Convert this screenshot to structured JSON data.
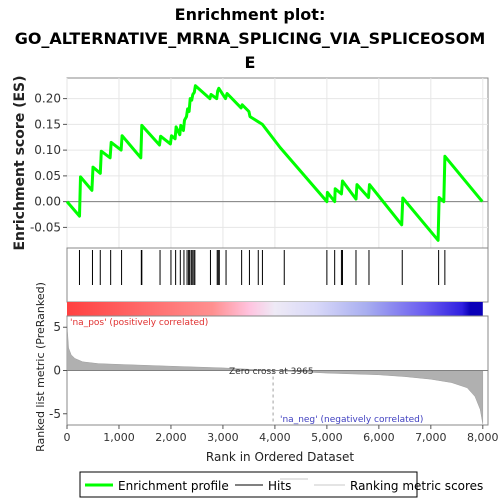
{
  "title_lines": [
    "Enrichment plot:",
    "GO_ALTERNATIVE_MRNA_SPLICING_VIA_SPLICEOSOM",
    "E"
  ],
  "chart_data": {
    "type": "line",
    "title": "Enrichment plot: GO_ALTERNATIVE_MRNA_SPLICING_VIA_SPLICEOSOME",
    "xlabel": "Rank in Ordered Dataset",
    "xlim": [
      0,
      8100
    ],
    "x_ticks": [
      0,
      1000,
      2000,
      3000,
      4000,
      5000,
      6000,
      7000,
      8000
    ],
    "x_tick_labels": [
      "0",
      "1,000",
      "2,000",
      "3,000",
      "4,000",
      "5,000",
      "6,000",
      "7,000",
      "8,000"
    ],
    "es_panel": {
      "ylabel": "Enrichment score (ES)",
      "ylim": [
        -0.09,
        0.24
      ],
      "y_ticks": [
        -0.05,
        0.0,
        0.05,
        0.1,
        0.15,
        0.2
      ],
      "y_tick_labels": [
        "-0.05",
        "0.00",
        "0.05",
        "0.10",
        "0.15",
        "0.20"
      ],
      "grid": true,
      "series": [
        {
          "name": "Enrichment profile",
          "color": "#00ff00",
          "x": [
            0,
            240,
            260,
            480,
            500,
            640,
            660,
            830,
            850,
            1040,
            1060,
            1420,
            1440,
            1780,
            1800,
            1990,
            2010,
            2080,
            2100,
            2170,
            2190,
            2240,
            2260,
            2300,
            2320,
            2350,
            2370,
            2400,
            2420,
            2450,
            2470,
            2750,
            2770,
            2880,
            2900,
            2920,
            3050,
            3080,
            3350,
            3370,
            3500,
            3520,
            3680,
            3760,
            4100,
            5000,
            5010,
            5150,
            5160,
            5280,
            5300,
            5560,
            5580,
            5800,
            5820,
            6440,
            6460,
            7140,
            7160,
            7250,
            7270,
            7990
          ],
          "y": [
            0.0,
            -0.028,
            0.048,
            0.022,
            0.067,
            0.055,
            0.098,
            0.085,
            0.115,
            0.1,
            0.128,
            0.085,
            0.148,
            0.11,
            0.127,
            0.112,
            0.128,
            0.122,
            0.145,
            0.13,
            0.148,
            0.138,
            0.158,
            0.165,
            0.18,
            0.175,
            0.2,
            0.197,
            0.208,
            0.212,
            0.225,
            0.2,
            0.208,
            0.2,
            0.215,
            0.22,
            0.2,
            0.21,
            0.182,
            0.188,
            0.175,
            0.165,
            0.155,
            0.15,
            0.105,
            0.0,
            0.018,
            0.0,
            0.025,
            0.015,
            0.04,
            0.005,
            0.033,
            0.008,
            0.033,
            -0.045,
            0.007,
            -0.075,
            0.008,
            0.0,
            0.088,
            0.0
          ]
        }
      ]
    },
    "hits": {
      "name": "Hits",
      "ranks": [
        240,
        490,
        640,
        840,
        1050,
        1430,
        1440,
        1790,
        2000,
        2090,
        2180,
        2250,
        2310,
        2340,
        2360,
        2390,
        2410,
        2440,
        2460,
        2760,
        2890,
        2910,
        2930,
        3060,
        3360,
        3510,
        3680,
        3760,
        4180,
        5000,
        5150,
        5280,
        5300,
        5560,
        5810,
        6450,
        7150,
        7270
      ]
    },
    "ranked_list_panel": {
      "ylabel": "Ranked list metric (PreRanked)",
      "ylim": [
        -6.3,
        6.3
      ],
      "y_ticks": [
        -5,
        0,
        5
      ],
      "y_tick_labels": [
        "-5",
        "0",
        "5"
      ],
      "zero_cross_label": "Zero cross at 3965",
      "zero_cross_rank": 3965,
      "pos_label": "'na_pos' (positively correlated)",
      "neg_label": "'na_neg' (negatively correlated)",
      "series": [
        {
          "name": "Ranking metric scores",
          "color": "#b0b0b0",
          "x": [
            0,
            10,
            30,
            80,
            150,
            300,
            600,
            1000,
            2000,
            3000,
            3965,
            5000,
            6000,
            6500,
            7000,
            7400,
            7700,
            7850,
            7950,
            8000
          ],
          "y": [
            6.2,
            4.5,
            2.6,
            1.8,
            1.4,
            1.0,
            0.8,
            0.7,
            0.5,
            0.3,
            0.0,
            -0.3,
            -0.5,
            -0.7,
            -1.0,
            -1.4,
            -2.0,
            -3.0,
            -4.5,
            -6.2
          ]
        }
      ]
    },
    "legend": {
      "placement": "bottom",
      "items": [
        {
          "label": "Enrichment profile",
          "color": "#00ff00"
        },
        {
          "label": "Hits",
          "color": "#000000"
        },
        {
          "label": "Ranking metric scores",
          "color": "#c8c8c8"
        }
      ]
    }
  }
}
